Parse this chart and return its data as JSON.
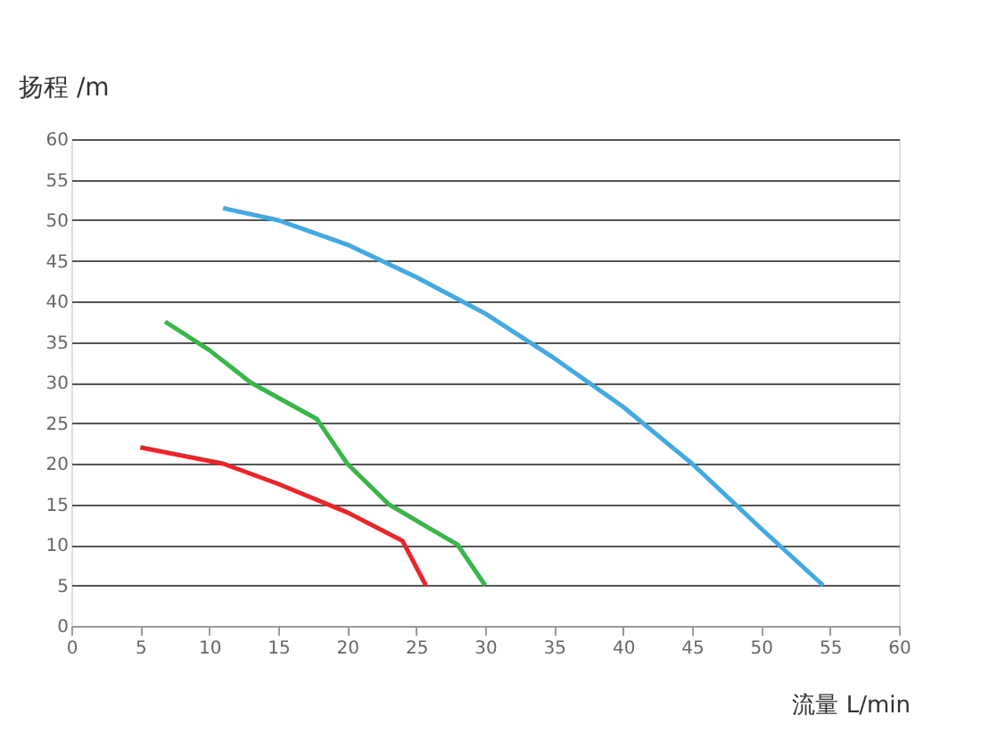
{
  "chart_data": {
    "type": "line",
    "ylabel": "扬程 /m",
    "xlabel": "流量 L/min",
    "xlim": [
      0,
      60
    ],
    "xticks": [
      0,
      5,
      10,
      15,
      20,
      25,
      30,
      35,
      40,
      45,
      50,
      55,
      60
    ],
    "ylim": [
      0,
      60
    ],
    "yticks": [
      0,
      5,
      10,
      15,
      20,
      25,
      30,
      35,
      40,
      45,
      50,
      55,
      60
    ],
    "grid": "y",
    "marker": "none",
    "line_style": "solid",
    "series": [
      {
        "color": "#e8262a",
        "x": [
          5,
          11,
          15,
          20,
          24,
          25.7
        ],
        "values": [
          22,
          20,
          17.5,
          14,
          10.5,
          5
        ]
      },
      {
        "color": "#3ab54a",
        "x": [
          6.8,
          10,
          13,
          17.8,
          20,
          23,
          26,
          28,
          30
        ],
        "values": [
          37.5,
          34,
          30,
          25.5,
          20,
          15,
          12,
          10,
          5
        ]
      },
      {
        "color": "#43a9e0",
        "x": [
          11,
          15,
          20,
          25,
          30,
          35,
          40,
          45,
          50,
          54.5
        ],
        "values": [
          51.5,
          50,
          47,
          43,
          38.5,
          33,
          27,
          20,
          12,
          5
        ]
      }
    ]
  }
}
